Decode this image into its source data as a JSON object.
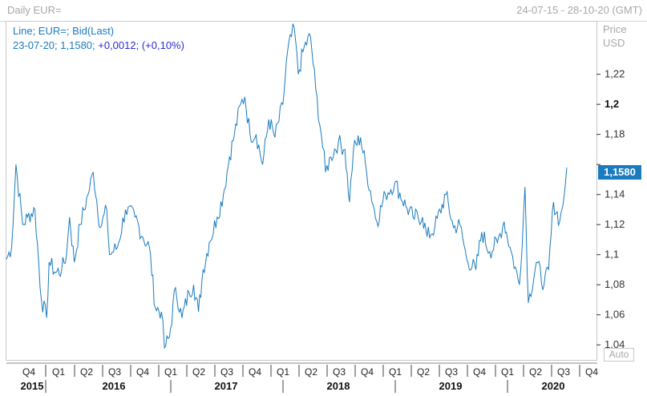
{
  "header": {
    "title": "Daily EUR=",
    "range": "24-07-15 - 28-10-20 (GMT)"
  },
  "legend": {
    "line1": "Line; EUR=; Bid(Last)",
    "line2_prefix": "23-07-20; 1,1580; ",
    "line2_change": "+0,0012; (+0,10%)"
  },
  "axis": {
    "price_label": "Price",
    "currency_label": "USD",
    "auto_label": "Auto"
  },
  "current_value_label": "1,1580",
  "colors": {
    "line": "#1a7bbf",
    "tag": "#1a7bbf"
  },
  "chart_data": {
    "type": "line",
    "title": "Daily EUR=",
    "ylabel": "Price USD",
    "ylim": [
      1.03,
      1.255
    ],
    "yticks": [
      {
        "value": 1.04,
        "label": "1,04",
        "bold": false
      },
      {
        "value": 1.06,
        "label": "1,06",
        "bold": false
      },
      {
        "value": 1.08,
        "label": "1,08",
        "bold": false
      },
      {
        "value": 1.1,
        "label": "1,1",
        "bold": false
      },
      {
        "value": 1.12,
        "label": "1,12",
        "bold": false
      },
      {
        "value": 1.14,
        "label": "1,14",
        "bold": false
      },
      {
        "value": 1.16,
        "label": "",
        "bold": false
      },
      {
        "value": 1.18,
        "label": "1,18",
        "bold": false
      },
      {
        "value": 1.2,
        "label": "1,2",
        "bold": true
      },
      {
        "value": 1.22,
        "label": "1,22",
        "bold": false
      }
    ],
    "x_quarters": [
      "Q4",
      "Q1",
      "Q2",
      "Q3",
      "Q4",
      "Q1",
      "Q2",
      "Q3",
      "Q4",
      "Q1",
      "Q2",
      "Q3",
      "Q4",
      "Q1",
      "Q2",
      "Q3",
      "Q4",
      "Q1",
      "Q2",
      "Q3",
      "Q4"
    ],
    "x_years": [
      "2015",
      "2016",
      "2017",
      "2018",
      "2019",
      "2020"
    ],
    "x_start": "2015-07-24",
    "series": [
      {
        "points": [
          [
            "2015-07-24",
            1.097
          ],
          [
            "2015-08-10",
            1.105
          ],
          [
            "2015-08-24",
            1.16
          ],
          [
            "2015-09-15",
            1.12
          ],
          [
            "2015-10-01",
            1.125
          ],
          [
            "2015-10-25",
            1.13
          ],
          [
            "2015-11-15",
            1.07
          ],
          [
            "2015-12-02",
            1.058
          ],
          [
            "2015-12-10",
            1.095
          ],
          [
            "2016-01-01",
            1.088
          ],
          [
            "2016-01-20",
            1.09
          ],
          [
            "2016-02-05",
            1.1
          ],
          [
            "2016-02-15",
            1.125
          ],
          [
            "2016-03-01",
            1.095
          ],
          [
            "2016-03-20",
            1.12
          ],
          [
            "2016-04-15",
            1.14
          ],
          [
            "2016-05-02",
            1.155
          ],
          [
            "2016-05-25",
            1.118
          ],
          [
            "2016-06-15",
            1.13
          ],
          [
            "2016-06-24",
            1.1
          ],
          [
            "2016-07-20",
            1.105
          ],
          [
            "2016-08-15",
            1.13
          ],
          [
            "2016-09-15",
            1.125
          ],
          [
            "2016-10-10",
            1.112
          ],
          [
            "2016-11-01",
            1.105
          ],
          [
            "2016-11-20",
            1.065
          ],
          [
            "2016-12-10",
            1.062
          ],
          [
            "2016-12-20",
            1.038
          ],
          [
            "2017-01-05",
            1.045
          ],
          [
            "2017-01-25",
            1.078
          ],
          [
            "2017-02-15",
            1.058
          ],
          [
            "2017-03-10",
            1.075
          ],
          [
            "2017-03-25",
            1.08
          ],
          [
            "2017-04-10",
            1.062
          ],
          [
            "2017-04-25",
            1.09
          ],
          [
            "2017-05-15",
            1.108
          ],
          [
            "2017-06-10",
            1.125
          ],
          [
            "2017-06-30",
            1.14
          ],
          [
            "2017-07-20",
            1.165
          ],
          [
            "2017-08-05",
            1.18
          ],
          [
            "2017-08-25",
            1.2
          ],
          [
            "2017-09-08",
            1.205
          ],
          [
            "2017-09-25",
            1.18
          ],
          [
            "2017-10-15",
            1.18
          ],
          [
            "2017-11-05",
            1.16
          ],
          [
            "2017-11-25",
            1.19
          ],
          [
            "2017-12-15",
            1.178
          ],
          [
            "2018-01-10",
            1.2
          ],
          [
            "2018-01-25",
            1.235
          ],
          [
            "2018-02-16",
            1.251
          ],
          [
            "2018-03-01",
            1.22
          ],
          [
            "2018-03-20",
            1.238
          ],
          [
            "2018-04-10",
            1.245
          ],
          [
            "2018-04-27",
            1.21
          ],
          [
            "2018-05-15",
            1.18
          ],
          [
            "2018-05-29",
            1.155
          ],
          [
            "2018-06-15",
            1.165
          ],
          [
            "2018-07-10",
            1.175
          ],
          [
            "2018-07-31",
            1.17
          ],
          [
            "2018-08-15",
            1.135
          ],
          [
            "2018-08-28",
            1.17
          ],
          [
            "2018-09-20",
            1.178
          ],
          [
            "2018-10-10",
            1.155
          ],
          [
            "2018-11-12",
            1.122
          ],
          [
            "2018-12-10",
            1.14
          ],
          [
            "2019-01-10",
            1.148
          ],
          [
            "2019-02-15",
            1.132
          ],
          [
            "2019-03-10",
            1.125
          ],
          [
            "2019-04-10",
            1.125
          ],
          [
            "2019-04-25",
            1.112
          ],
          [
            "2019-05-20",
            1.118
          ],
          [
            "2019-06-25",
            1.14
          ],
          [
            "2019-07-20",
            1.118
          ],
          [
            "2019-08-10",
            1.12
          ],
          [
            "2019-09-01",
            1.097
          ],
          [
            "2019-10-01",
            1.09
          ],
          [
            "2019-10-20",
            1.115
          ],
          [
            "2019-11-15",
            1.102
          ],
          [
            "2019-12-10",
            1.108
          ],
          [
            "2020-01-01",
            1.122
          ],
          [
            "2020-01-20",
            1.105
          ],
          [
            "2020-02-20",
            1.08
          ],
          [
            "2020-03-09",
            1.145
          ],
          [
            "2020-03-20",
            1.068
          ],
          [
            "2020-04-15",
            1.095
          ],
          [
            "2020-05-10",
            1.08
          ],
          [
            "2020-05-25",
            1.09
          ],
          [
            "2020-06-10",
            1.135
          ],
          [
            "2020-06-30",
            1.122
          ],
          [
            "2020-07-10",
            1.132
          ],
          [
            "2020-07-23",
            1.158
          ]
        ]
      }
    ]
  }
}
